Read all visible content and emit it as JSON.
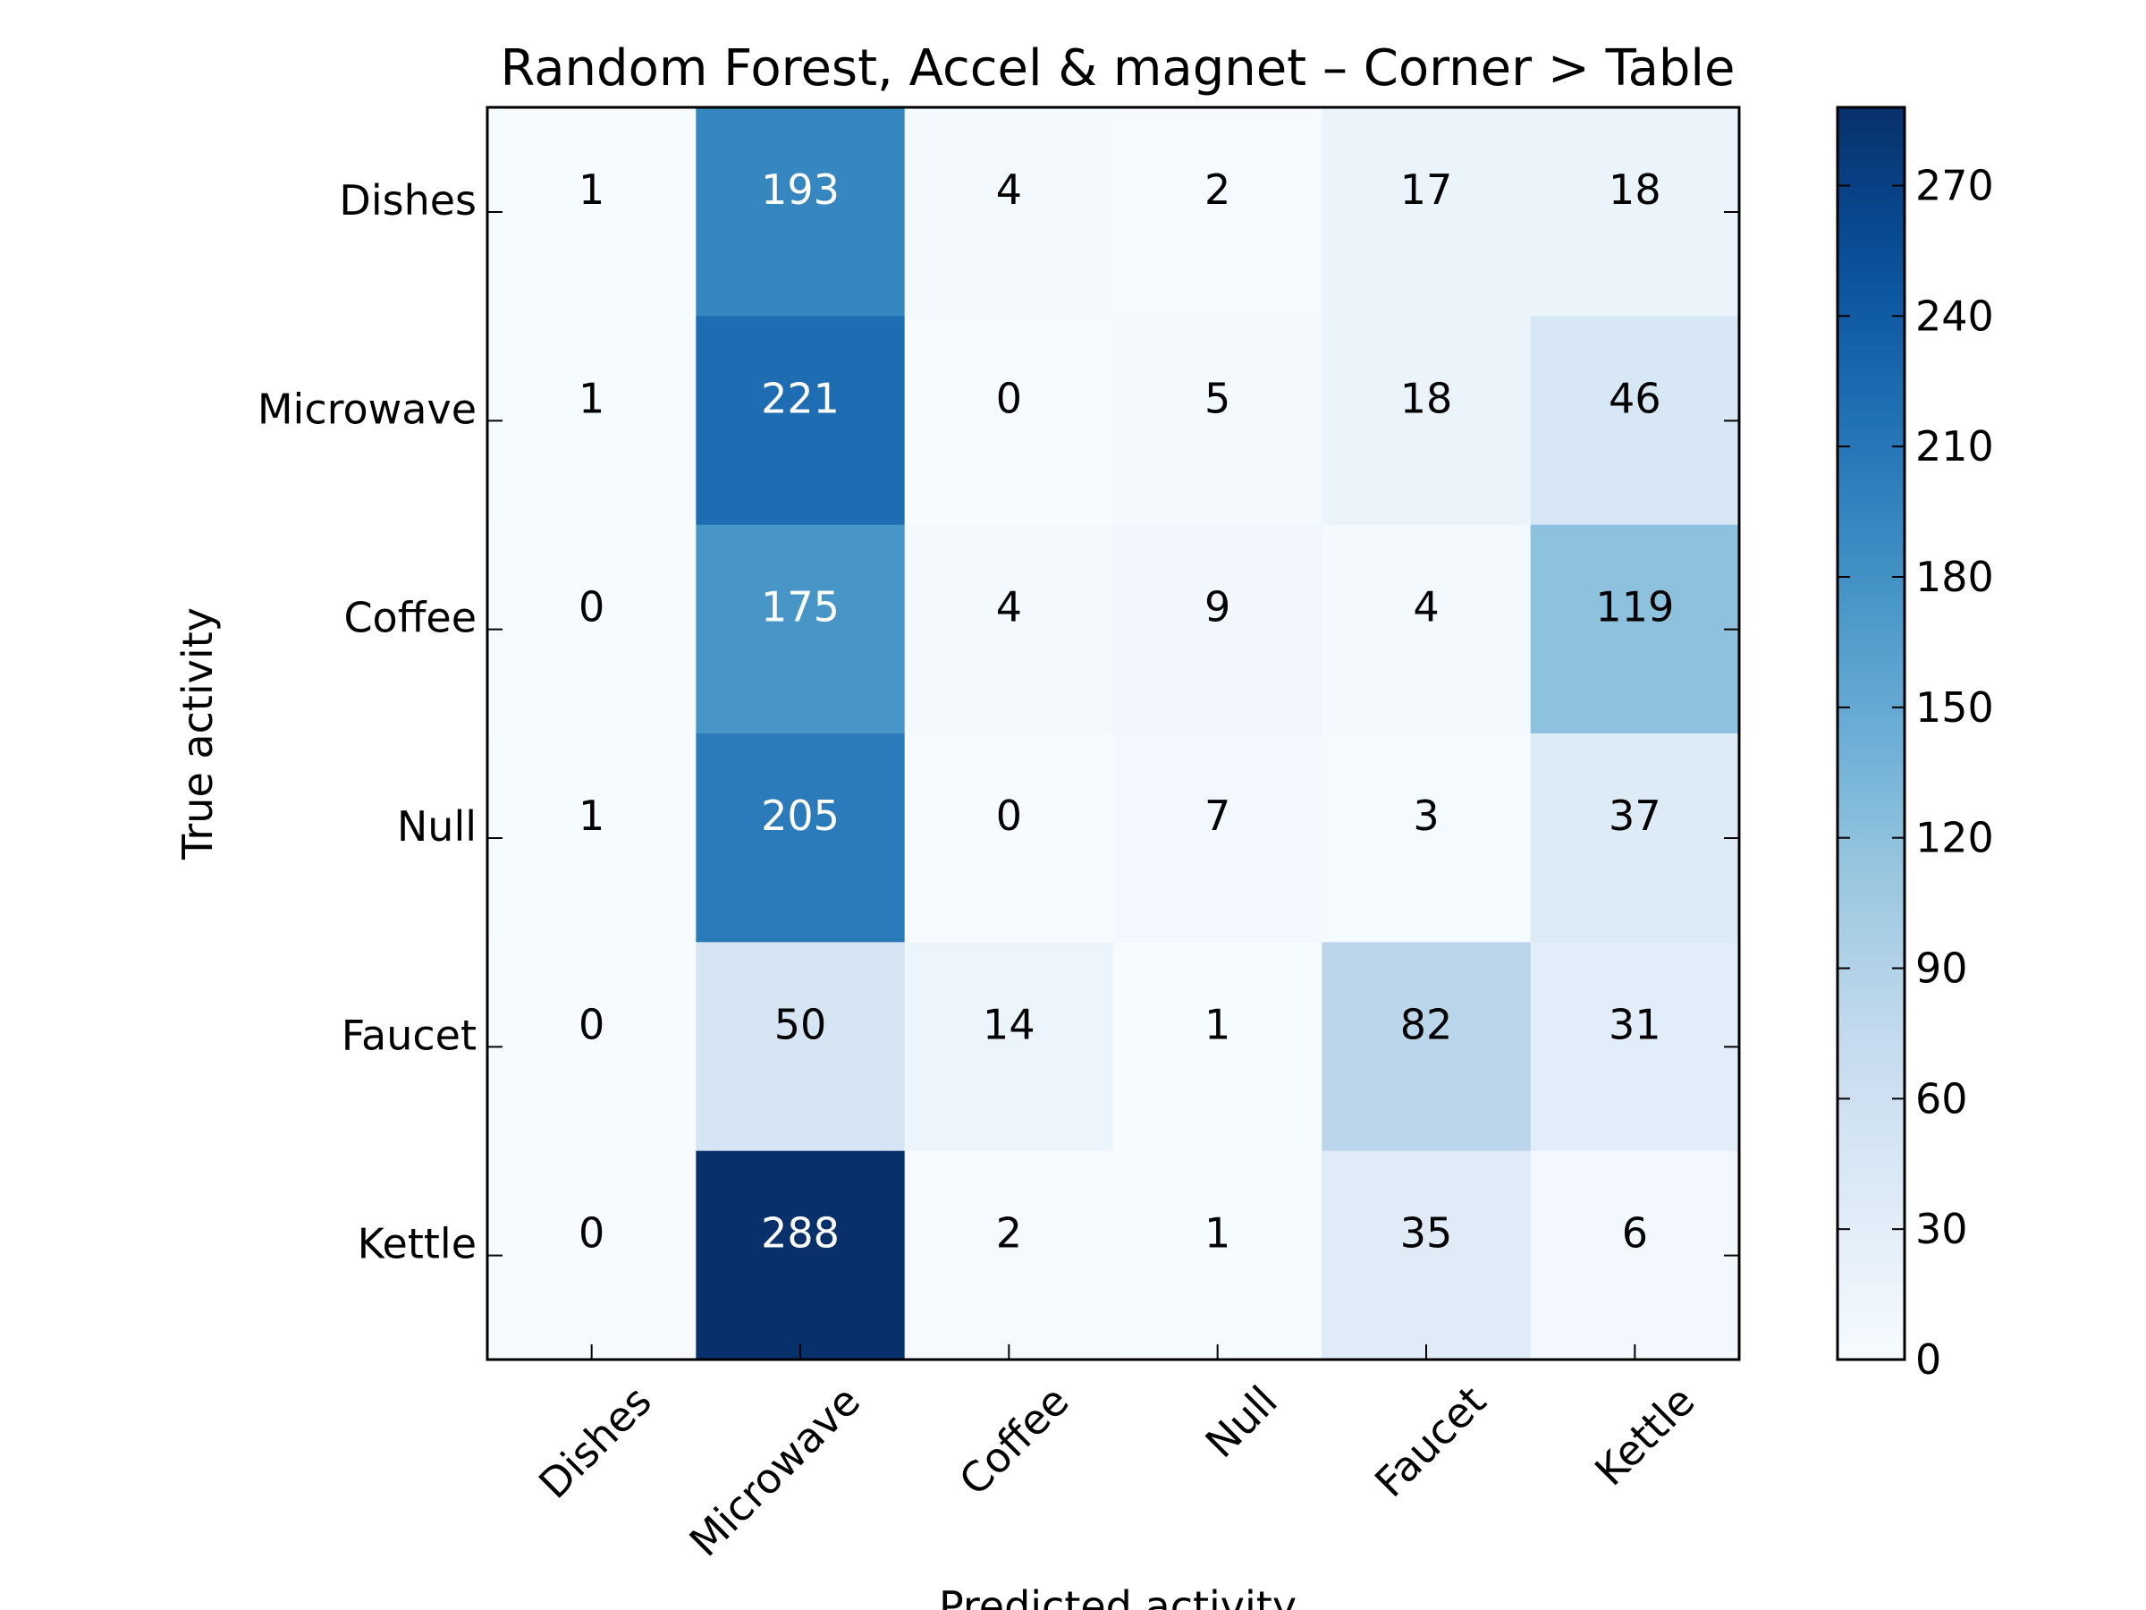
{
  "chart_data": {
    "type": "heatmap",
    "title": "Random Forest, Accel & magnet – Corner > Table",
    "xlabel": "Predicted activity",
    "ylabel": "True activity",
    "row_labels": [
      "Dishes",
      "Microwave",
      "Coffee",
      "Null",
      "Faucet",
      "Kettle"
    ],
    "col_labels": [
      "Dishes",
      "Microwave",
      "Coffee",
      "Null",
      "Faucet",
      "Kettle"
    ],
    "values": [
      [
        1,
        193,
        4,
        2,
        17,
        18
      ],
      [
        1,
        221,
        0,
        5,
        18,
        46
      ],
      [
        0,
        175,
        4,
        9,
        4,
        119
      ],
      [
        1,
        205,
        0,
        7,
        3,
        37
      ],
      [
        0,
        50,
        14,
        1,
        82,
        31
      ],
      [
        0,
        288,
        2,
        1,
        35,
        6
      ]
    ],
    "colormap": "Blues",
    "colorbar": {
      "range": [
        0,
        288
      ],
      "ticks": [
        0,
        30,
        60,
        90,
        120,
        150,
        180,
        210,
        240,
        270
      ]
    }
  }
}
